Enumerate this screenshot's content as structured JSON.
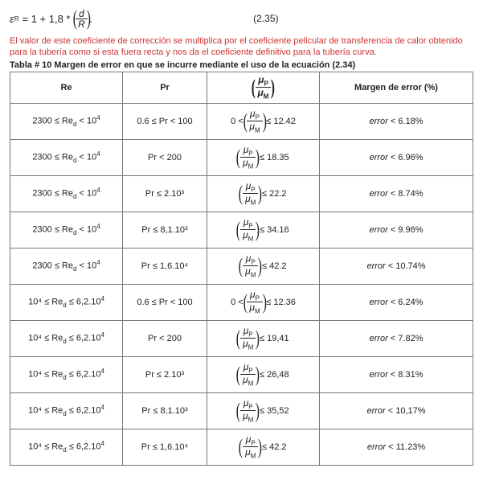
{
  "equation": {
    "lhs": "ε",
    "lhs_sub": "R",
    "rhs_text": "= 1 + 1,8 *",
    "frac_num": "d",
    "frac_den": "R",
    "eq_number": "(2.35)"
  },
  "intro_text": "El valor de este coeficiente de corrección se multiplica por el coeficiente pelicular de transferencia de calor obtenido para la tubería como si esta fuera recta y nos da el coeficiente definitivo para la tubería curva.",
  "table_caption": "Tabla # 10 Margen de error en que se incurre mediante el uso de la ecuación (2.34)",
  "headers": {
    "h1": "Re",
    "h2": "Pr",
    "h3_num": "μ",
    "h3_num_sub": "P",
    "h3_den": "μ",
    "h3_den_sub": "M",
    "h4": "Margen de error (%)"
  },
  "mu": {
    "num": "μ",
    "num_sub": "P",
    "den": "μ",
    "den_sub": "M"
  },
  "rows": [
    {
      "re_lo": "2300 ≤ Re",
      "re_sub": "d",
      "re_hi": " < 10",
      "re_exp": "4",
      "pr": "0.6 ≤ Pr < 100",
      "mu_pre": "0 < ",
      "mu_bound": "≤ 12.42",
      "err_pre": "error",
      "err_rel": " < 6.18%"
    },
    {
      "re_lo": "2300 ≤ Re",
      "re_sub": "d",
      "re_hi": " < 10",
      "re_exp": "4",
      "pr": "Pr < 200",
      "mu_pre": "",
      "mu_bound": "≤ 18.35",
      "err_pre": "error",
      "err_rel": " < 6.96%"
    },
    {
      "re_lo": "2300 ≤ Re",
      "re_sub": "d",
      "re_hi": " < 10",
      "re_exp": "4",
      "pr": "Pr ≤ 2.10³",
      "mu_pre": "",
      "mu_bound": "≤  22.2",
      "err_pre": "error",
      "err_rel": " < 8.74%"
    },
    {
      "re_lo": "2300 ≤ Re",
      "re_sub": "d",
      "re_hi": " < 10",
      "re_exp": "4",
      "pr": "Pr ≤ 8,1.10³",
      "mu_pre": "",
      "mu_bound": "≤ 34.16",
      "err_pre": "error",
      "err_rel": " < 9.96%"
    },
    {
      "re_lo": "2300 ≤ Re",
      "re_sub": "d",
      "re_hi": " < 10",
      "re_exp": "4",
      "pr": "Pr ≤ 1,6.10⁴",
      "mu_pre": "",
      "mu_bound": "≤ 42.2",
      "err_pre": "error",
      "err_rel": " < 10.74%"
    },
    {
      "re_lo": "10⁴ ≤ Re",
      "re_sub": "d",
      "re_hi": " ≤ 6,2.10",
      "re_exp": "4",
      "pr": "0.6 ≤ Pr < 100",
      "mu_pre": "0 < ",
      "mu_bound": "≤ 12.36",
      "err_pre": "error",
      "err_rel": " < 6.24%"
    },
    {
      "re_lo": "10⁴ ≤ Re",
      "re_sub": "d",
      "re_hi": " ≤ 6,2.10",
      "re_exp": "4",
      "pr": "Pr < 200",
      "mu_pre": "",
      "mu_bound": "≤ 19,41",
      "err_pre": "error",
      "err_rel": " < 7.82%"
    },
    {
      "re_lo": "10⁴ ≤ Re",
      "re_sub": "d",
      "re_hi": " ≤ 6,2.10",
      "re_exp": "4",
      "pr": "Pr ≤ 2.10³",
      "mu_pre": "",
      "mu_bound": "≤  26,48",
      "err_pre": "error",
      "err_rel": " < 8.31%"
    },
    {
      "re_lo": "10⁴ ≤ Re",
      "re_sub": "d",
      "re_hi": " ≤ 6,2.10",
      "re_exp": "4",
      "pr": "Pr ≤ 8,1.10³",
      "mu_pre": "",
      "mu_bound": "≤  35,52",
      "err_pre": "error ",
      "err_rel": " < 10,17%"
    },
    {
      "re_lo": "10⁴ ≤ Re",
      "re_sub": "d",
      "re_hi": " ≤ 6,2.10",
      "re_exp": "4",
      "pr": "Pr ≤ 1,6.10⁴",
      "mu_pre": "",
      "mu_bound": "≤ 42.2",
      "err_pre": "error",
      "err_rel": " < 11.23%"
    }
  ]
}
